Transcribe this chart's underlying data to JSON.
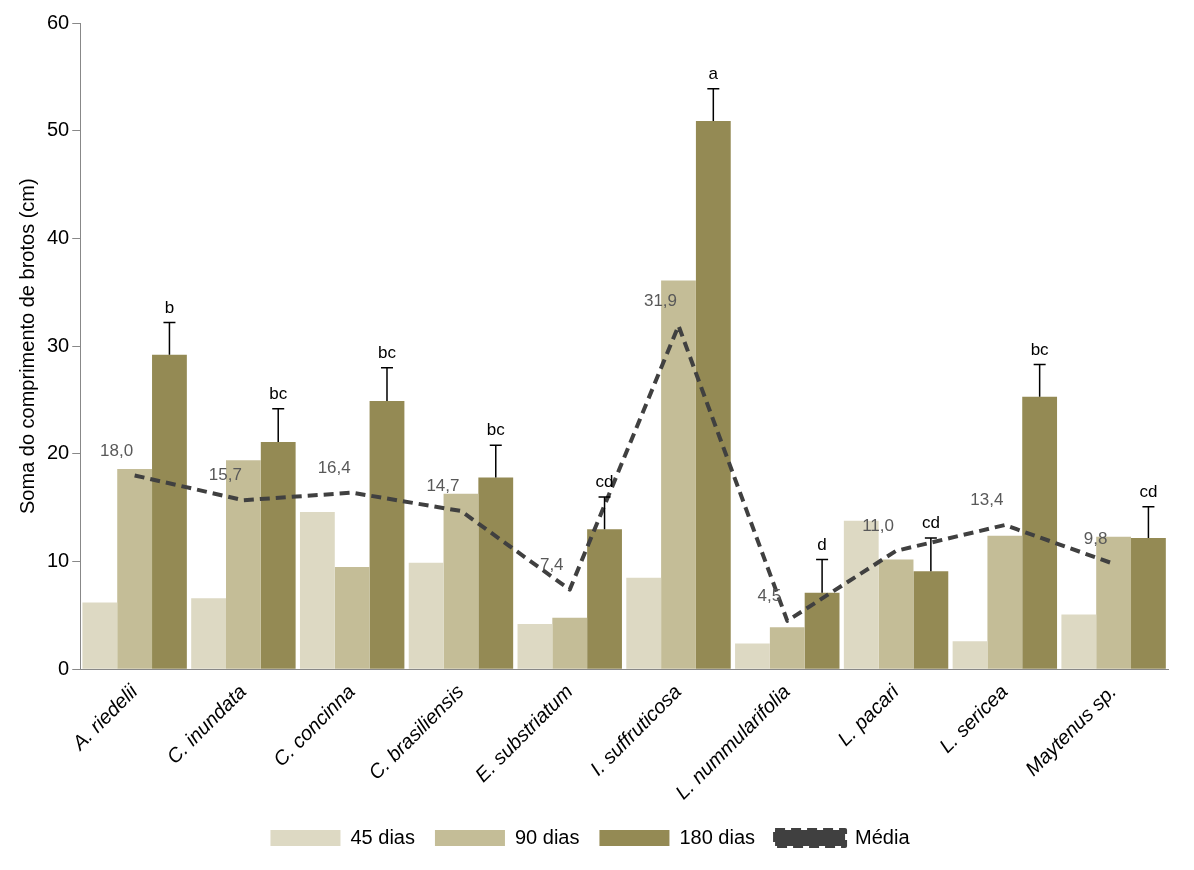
{
  "chart_data": {
    "type": "bar",
    "ylabel": "Soma do comprimento de brotos (cm)",
    "categories": [
      "A. riedelii",
      "C. inundata",
      "C. concinna",
      "C. brasiliensis",
      "E. substriatum",
      "I. suffruticosa",
      "L. nummularifolia",
      "L. pacari",
      "L. sericea",
      "Maytenus sp."
    ],
    "series": [
      {
        "name": "45 dias",
        "color": "#ddd9c3",
        "values": [
          6.2,
          6.6,
          14.6,
          9.9,
          4.2,
          8.5,
          2.4,
          13.8,
          2.6,
          5.1
        ]
      },
      {
        "name": "90 dias",
        "color": "#c4bd97",
        "values": [
          18.6,
          19.4,
          9.5,
          16.3,
          4.8,
          36.1,
          3.9,
          10.2,
          12.4,
          12.3
        ]
      },
      {
        "name": "180 dias",
        "color": "#948a54",
        "values": [
          29.2,
          21.1,
          24.9,
          17.8,
          13.0,
          50.9,
          7.1,
          9.1,
          25.3,
          12.2
        ],
        "value_labels": [
          "b",
          "bc",
          "bc",
          "bc",
          "cd",
          "a",
          "d",
          "cd",
          "bc",
          "cd"
        ],
        "errors": [
          [
            29.2,
            32.2
          ],
          [
            21.1,
            24.2
          ],
          [
            24.9,
            28.0
          ],
          [
            17.8,
            20.8
          ],
          [
            13.0,
            16.0
          ],
          [
            50.9,
            53.9
          ],
          [
            7.1,
            10.2
          ],
          [
            9.1,
            12.2
          ],
          [
            25.3,
            28.3
          ],
          [
            12.2,
            15.1
          ]
        ]
      },
      {
        "name": "Média",
        "type": "line",
        "color": "#404040",
        "line_style": "dashed",
        "marker": "none",
        "values": [
          18.0,
          15.7,
          16.4,
          14.7,
          7.4,
          31.9,
          4.5,
          11.0,
          13.4,
          9.8
        ],
        "value_labels": [
          "18,0",
          "15,7",
          "16,4",
          "14,7",
          "7,4",
          "31,9",
          "4,5",
          "11,0",
          "13,4",
          "9,8"
        ]
      }
    ],
    "ylim": [
      0,
      60
    ],
    "yticks": [
      0,
      10,
      20,
      30,
      40,
      50,
      60
    ],
    "grid": false,
    "legend": "bottom"
  }
}
